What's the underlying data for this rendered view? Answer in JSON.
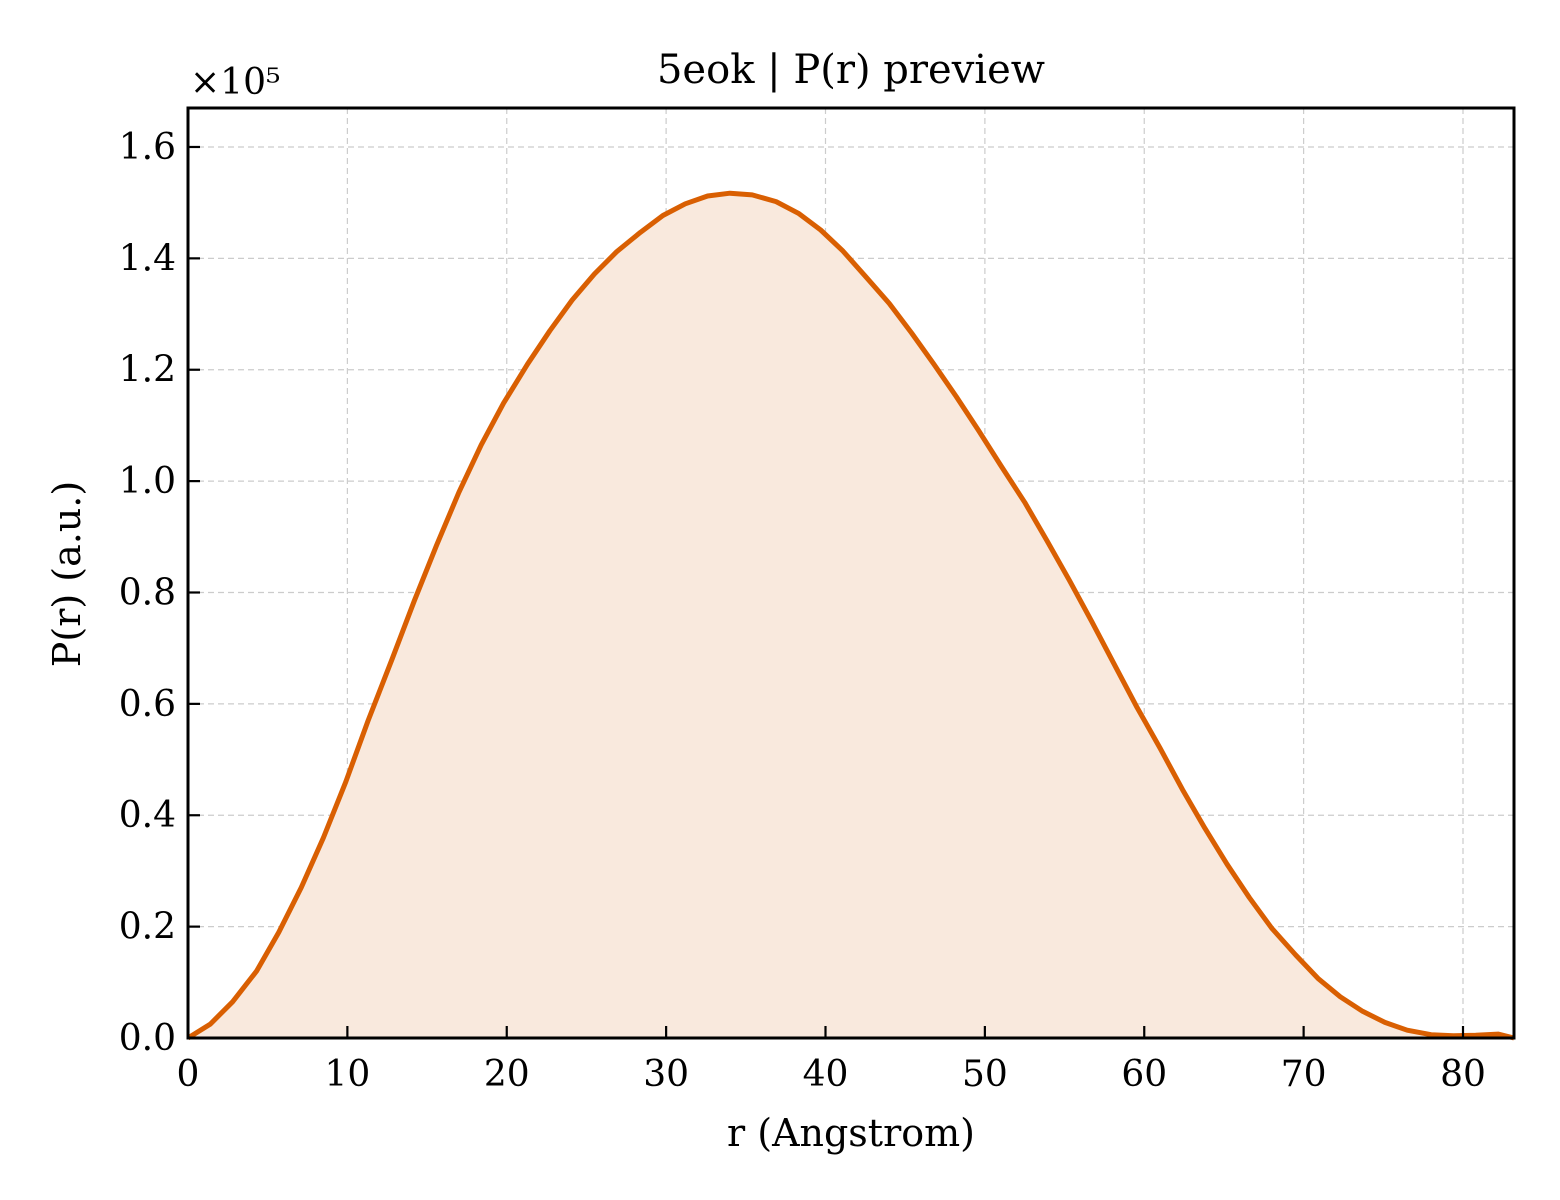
{
  "chart_data": {
    "type": "area",
    "title": "5eok | P(r) preview",
    "xlabel": "r (Angstrom)",
    "ylabel": "P(r) (a.u.)",
    "y_multiplier_label": "×10⁵",
    "xlim": [
      0,
      83.2
    ],
    "ylim": [
      0,
      1.67
    ],
    "x_ticks": [
      0,
      10,
      20,
      30,
      40,
      50,
      60,
      70,
      80
    ],
    "x_tick_labels": [
      "0",
      "10",
      "20",
      "30",
      "40",
      "50",
      "60",
      "70",
      "80"
    ],
    "y_ticks": [
      0.0,
      0.2,
      0.4,
      0.6,
      0.8,
      1.0,
      1.2,
      1.4,
      1.6
    ],
    "y_tick_labels": [
      "0.0",
      "0.2",
      "0.4",
      "0.6",
      "0.8",
      "1.0",
      "1.2",
      "1.4",
      "1.6"
    ],
    "grid": true,
    "line_color": "#d95f02",
    "fill_color": "#f9e9dd",
    "series": [
      {
        "x": [
          0,
          1.4,
          2.8,
          4.3,
          5.7,
          7.1,
          8.5,
          9.9,
          11.3,
          12.8,
          14.2,
          15.6,
          17.0,
          18.4,
          19.8,
          21.3,
          22.7,
          24.1,
          25.5,
          26.9,
          28.4,
          29.8,
          31.2,
          32.6,
          34.0,
          35.4,
          36.9,
          38.3,
          39.7,
          41.1,
          42.5,
          44.0,
          45.4,
          46.8,
          48.2,
          49.6,
          51.0,
          52.5,
          53.9,
          55.3,
          56.7,
          58.1,
          59.5,
          61.0,
          62.4,
          63.8,
          65.2,
          66.6,
          68.0,
          69.5,
          70.9,
          72.3,
          73.7,
          75.1,
          76.5,
          78.0,
          79.4,
          80.8,
          82.2,
          83.2
        ],
        "y": [
          0.0,
          0.025,
          0.065,
          0.12,
          0.19,
          0.27,
          0.36,
          0.46,
          0.57,
          0.68,
          0.785,
          0.885,
          0.98,
          1.065,
          1.14,
          1.21,
          1.27,
          1.325,
          1.372,
          1.412,
          1.447,
          1.477,
          1.498,
          1.512,
          1.517,
          1.514,
          1.502,
          1.481,
          1.451,
          1.413,
          1.368,
          1.319,
          1.266,
          1.21,
          1.152,
          1.091,
          1.028,
          0.962,
          0.893,
          0.822,
          0.748,
          0.672,
          0.596,
          0.52,
          0.446,
          0.377,
          0.312,
          0.252,
          0.197,
          0.149,
          0.107,
          0.074,
          0.048,
          0.028,
          0.014,
          0.006,
          0.004,
          0.005,
          0.007,
          0.0
        ]
      }
    ]
  }
}
